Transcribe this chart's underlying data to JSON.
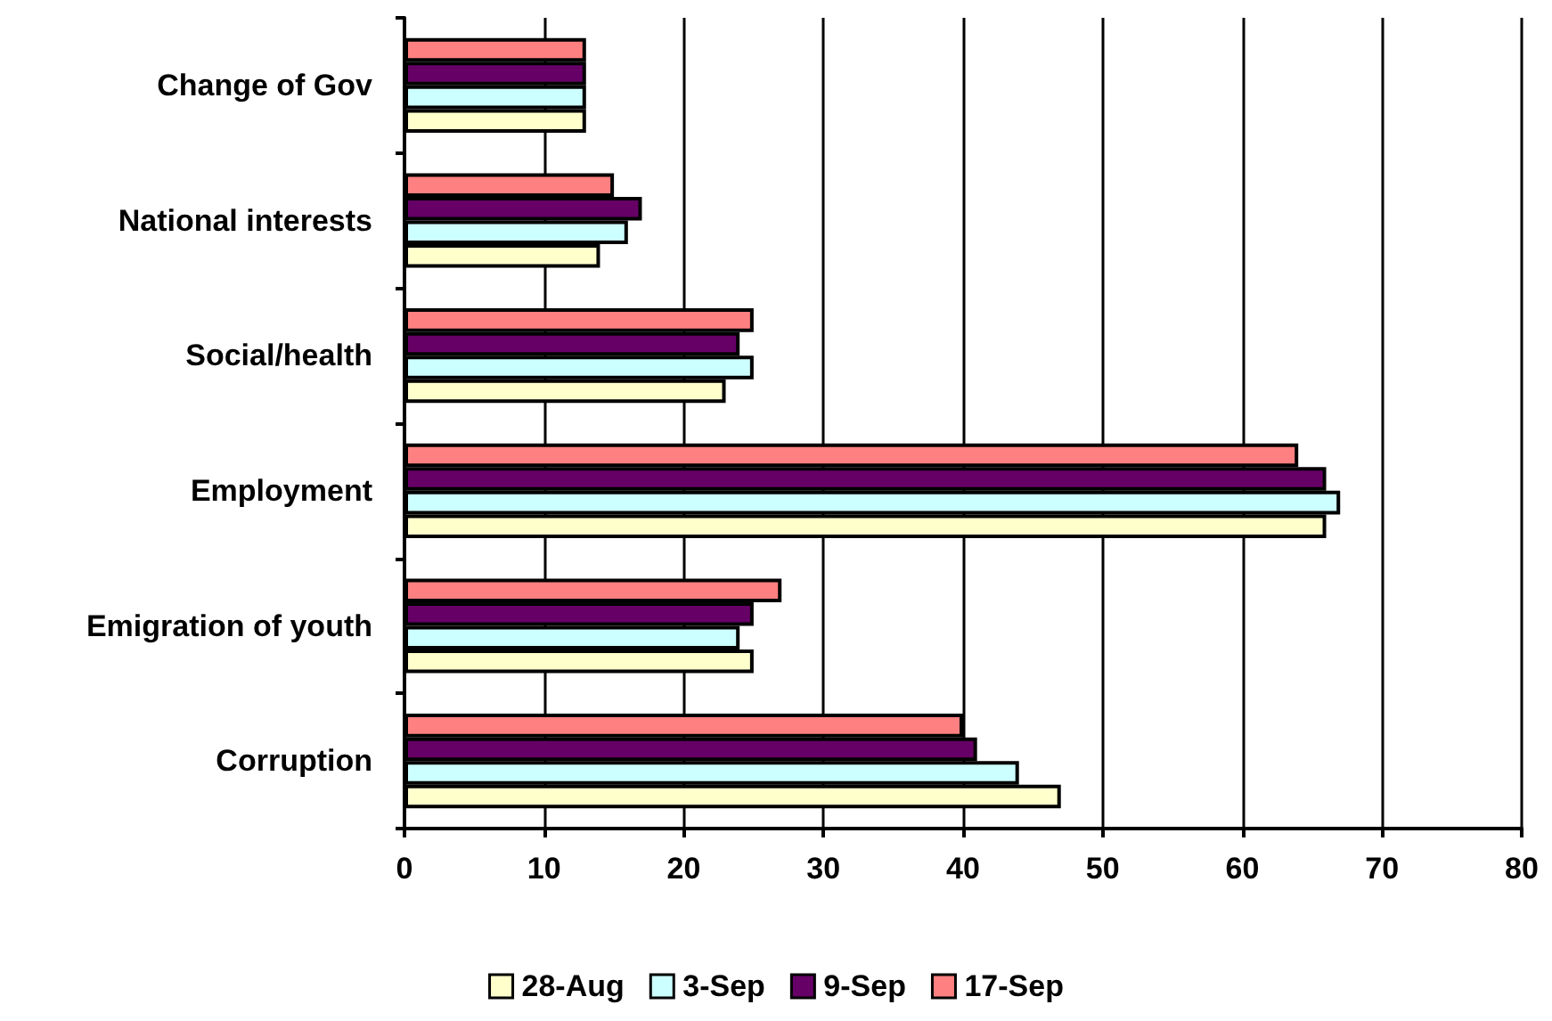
{
  "chart_data": {
    "type": "bar",
    "orientation": "horizontal",
    "categories": [
      "Change of Gov",
      "National interests",
      "Social/health",
      "Employment",
      "Emigration of youth",
      "Corruption"
    ],
    "series": [
      {
        "name": "28-Aug",
        "color": "#ffffcc",
        "values": [
          13,
          14,
          23,
          66,
          25,
          47
        ]
      },
      {
        "name": "3-Sep",
        "color": "#ccffff",
        "values": [
          13,
          16,
          25,
          67,
          24,
          44
        ]
      },
      {
        "name": "9-Sep",
        "color": "#660066",
        "values": [
          13,
          17,
          24,
          66,
          25,
          41
        ]
      },
      {
        "name": "17-Sep",
        "color": "#ff8080",
        "values": [
          13,
          15,
          25,
          64,
          27,
          40
        ]
      }
    ],
    "xlim": [
      0,
      80
    ],
    "xticks": [
      0,
      10,
      20,
      30,
      40,
      50,
      60,
      70,
      80
    ],
    "grid": "x",
    "legend": "bottom"
  }
}
